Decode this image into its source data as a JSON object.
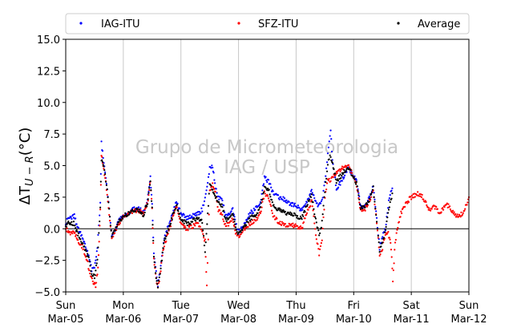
{
  "chart_data": {
    "type": "scatter",
    "ylabel": "ΔT_U−R (°C)",
    "ylabel_main": "ΔT",
    "ylabel_sub": "U − R",
    "ylabel_unit": "(°C)",
    "xlabel": "",
    "ylim": [
      -5,
      15
    ],
    "y_ticks": [
      "−5.0",
      "−2.5",
      "0.0",
      "2.5",
      "5.0",
      "7.5",
      "10.0",
      "12.5",
      "15.0"
    ],
    "x_ticks": [
      {
        "day": "Sun",
        "date": "Mar-05"
      },
      {
        "day": "Mon",
        "date": "Mar-06"
      },
      {
        "day": "Tue",
        "date": "Mar-07"
      },
      {
        "day": "Wed",
        "date": "Mar-08"
      },
      {
        "day": "Thu",
        "date": "Mar-09"
      },
      {
        "day": "Fri",
        "date": "Mar-10"
      },
      {
        "day": "Sat",
        "date": "Mar-11"
      },
      {
        "day": "Sun",
        "date": "Mar-12"
      }
    ],
    "xlim_days": [
      0,
      7
    ],
    "grid": "vertical-only",
    "zero_line": true,
    "legend_placement": "top",
    "watermark": [
      "Grupo de Micrometeorologia",
      "IAG / USP"
    ],
    "series": [
      {
        "name": "IAG-ITU",
        "color": "#0000ff",
        "points": [
          [
            0,
            0.5
          ],
          [
            0.08,
            0.9
          ],
          [
            0.15,
            1.0
          ],
          [
            0.2,
            0.2
          ],
          [
            0.3,
            -0.8
          ],
          [
            0.4,
            -2.2
          ],
          [
            0.45,
            -3.2
          ],
          [
            0.5,
            -3.0
          ],
          [
            0.55,
            -1.5
          ],
          [
            0.6,
            2.0
          ],
          [
            0.62,
            6.8
          ],
          [
            0.66,
            5.2
          ],
          [
            0.72,
            3.2
          ],
          [
            0.8,
            -0.5
          ],
          [
            0.85,
            -0.2
          ],
          [
            0.9,
            0.5
          ],
          [
            1.0,
            1.0
          ],
          [
            1.1,
            1.3
          ],
          [
            1.2,
            1.6
          ],
          [
            1.3,
            1.5
          ],
          [
            1.35,
            1.2
          ],
          [
            1.42,
            2.2
          ],
          [
            1.47,
            4.0
          ],
          [
            1.5,
            1.8
          ],
          [
            1.53,
            -2.0
          ],
          [
            1.57,
            -3.5
          ],
          [
            1.6,
            -4.5
          ],
          [
            1.65,
            -3.0
          ],
          [
            1.7,
            -1.0
          ],
          [
            1.8,
            0.5
          ],
          [
            1.87,
            1.5
          ],
          [
            1.92,
            2.1
          ],
          [
            2.0,
            1.2
          ],
          [
            2.1,
            0.8
          ],
          [
            2.2,
            1.0
          ],
          [
            2.3,
            1.2
          ],
          [
            2.37,
            1.5
          ],
          [
            2.42,
            2.4
          ],
          [
            2.5,
            4.8
          ],
          [
            2.55,
            5.0
          ],
          [
            2.6,
            3.2
          ],
          [
            2.65,
            2.5
          ],
          [
            2.72,
            2.2
          ],
          [
            2.78,
            1.0
          ],
          [
            2.85,
            1.3
          ],
          [
            2.9,
            1.5
          ],
          [
            2.95,
            0.5
          ],
          [
            3.0,
            -0.3
          ],
          [
            3.1,
            0.3
          ],
          [
            3.2,
            1.2
          ],
          [
            3.3,
            1.6
          ],
          [
            3.38,
            2.0
          ],
          [
            3.45,
            4.0
          ],
          [
            3.52,
            3.8
          ],
          [
            3.6,
            2.8
          ],
          [
            3.7,
            2.5
          ],
          [
            3.8,
            2.3
          ],
          [
            3.9,
            2.0
          ],
          [
            4.0,
            1.8
          ],
          [
            4.1,
            1.5
          ],
          [
            4.2,
            2.3
          ],
          [
            4.27,
            3.1
          ],
          [
            4.33,
            2.2
          ],
          [
            4.4,
            1.8
          ],
          [
            4.45,
            2.3
          ],
          [
            4.5,
            3.6
          ],
          [
            4.55,
            6.0
          ],
          [
            4.6,
            7.8
          ],
          [
            4.63,
            5.5
          ],
          [
            4.7,
            3.2
          ],
          [
            4.8,
            3.8
          ],
          [
            4.9,
            4.8
          ],
          [
            4.95,
            4.5
          ],
          [
            5.05,
            3.8
          ],
          [
            5.12,
            1.7
          ],
          [
            5.2,
            1.8
          ],
          [
            5.28,
            2.5
          ],
          [
            5.34,
            3.4
          ],
          [
            5.4,
            0.8
          ],
          [
            5.45,
            -1.5
          ],
          [
            5.5,
            -0.5
          ],
          [
            5.55,
            0.0
          ],
          [
            5.62,
            2.5
          ],
          [
            5.67,
            3.2
          ]
        ]
      },
      {
        "name": "SFZ-ITU",
        "color": "#ff0000",
        "points": [
          [
            0,
            0.0
          ],
          [
            0.08,
            -0.3
          ],
          [
            0.15,
            -0.2
          ],
          [
            0.2,
            -0.8
          ],
          [
            0.3,
            -1.5
          ],
          [
            0.37,
            -2.5
          ],
          [
            0.42,
            -3.5
          ],
          [
            0.47,
            -4.2
          ],
          [
            0.52,
            -4.5
          ],
          [
            0.56,
            -3.2
          ],
          [
            0.6,
            1.5
          ],
          [
            0.62,
            5.8
          ],
          [
            0.66,
            4.8
          ],
          [
            0.72,
            2.8
          ],
          [
            0.8,
            -0.8
          ],
          [
            0.85,
            -0.3
          ],
          [
            0.9,
            0.3
          ],
          [
            1.0,
            0.9
          ],
          [
            1.1,
            1.2
          ],
          [
            1.2,
            1.4
          ],
          [
            1.3,
            1.4
          ],
          [
            1.35,
            1.1
          ],
          [
            1.42,
            2.0
          ],
          [
            1.47,
            3.8
          ],
          [
            1.5,
            1.5
          ],
          [
            1.53,
            -2.5
          ],
          [
            1.57,
            -4.0
          ],
          [
            1.6,
            -4.8
          ],
          [
            1.65,
            -3.2
          ],
          [
            1.7,
            -1.5
          ],
          [
            1.8,
            0.0
          ],
          [
            1.87,
            1.0
          ],
          [
            1.92,
            1.8
          ],
          [
            2.0,
            0.3
          ],
          [
            2.1,
            0.0
          ],
          [
            2.2,
            0.2
          ],
          [
            2.3,
            0.4
          ],
          [
            2.37,
            -0.3
          ],
          [
            2.42,
            -1.0
          ],
          [
            2.45,
            -4.5
          ],
          [
            2.5,
            3.0
          ],
          [
            2.55,
            3.5
          ],
          [
            2.6,
            2.8
          ],
          [
            2.65,
            1.5
          ],
          [
            2.72,
            1.0
          ],
          [
            2.78,
            0.2
          ],
          [
            2.85,
            0.5
          ],
          [
            2.9,
            0.8
          ],
          [
            2.95,
            -0.3
          ],
          [
            3.0,
            -0.6
          ],
          [
            3.1,
            0.0
          ],
          [
            3.2,
            0.4
          ],
          [
            3.3,
            0.7
          ],
          [
            3.38,
            1.2
          ],
          [
            3.45,
            2.8
          ],
          [
            3.52,
            2.5
          ],
          [
            3.6,
            1.0
          ],
          [
            3.7,
            0.5
          ],
          [
            3.8,
            0.3
          ],
          [
            3.9,
            0.3
          ],
          [
            4.0,
            0.2
          ],
          [
            4.1,
            0.0
          ],
          [
            4.2,
            1.5
          ],
          [
            4.27,
            2.2
          ],
          [
            4.33,
            0.0
          ],
          [
            4.4,
            -2.0
          ],
          [
            4.45,
            -1.0
          ],
          [
            4.5,
            2.5
          ],
          [
            4.55,
            4.0
          ],
          [
            4.6,
            3.8
          ],
          [
            4.7,
            4.5
          ],
          [
            4.8,
            4.8
          ],
          [
            4.9,
            5.0
          ],
          [
            4.95,
            4.6
          ],
          [
            5.05,
            3.5
          ],
          [
            5.12,
            1.5
          ],
          [
            5.2,
            1.6
          ],
          [
            5.28,
            2.3
          ],
          [
            5.34,
            3.0
          ],
          [
            5.4,
            0.5
          ],
          [
            5.45,
            -2.0
          ],
          [
            5.5,
            -1.5
          ],
          [
            5.55,
            -0.5
          ],
          [
            5.6,
            -0.3
          ],
          [
            5.65,
            -1.5
          ],
          [
            5.68,
            -4.2
          ],
          [
            5.72,
            -1.0
          ],
          [
            5.8,
            1.0
          ],
          [
            5.9,
            2.0
          ],
          [
            6.0,
            2.5
          ],
          [
            6.1,
            2.8
          ],
          [
            6.2,
            2.5
          ],
          [
            6.3,
            1.5
          ],
          [
            6.4,
            1.8
          ],
          [
            6.5,
            1.2
          ],
          [
            6.6,
            2.0
          ],
          [
            6.7,
            1.5
          ],
          [
            6.8,
            1.0
          ],
          [
            6.9,
            1.2
          ],
          [
            7.0,
            2.5
          ]
        ]
      },
      {
        "name": "Average",
        "color": "#000000",
        "points": [
          [
            0,
            0.3
          ],
          [
            0.08,
            0.5
          ],
          [
            0.15,
            0.4
          ],
          [
            0.2,
            -0.3
          ],
          [
            0.3,
            -1.2
          ],
          [
            0.4,
            -2.4
          ],
          [
            0.45,
            -3.5
          ],
          [
            0.5,
            -3.8
          ],
          [
            0.55,
            -2.4
          ],
          [
            0.6,
            1.8
          ],
          [
            0.62,
            5.5
          ],
          [
            0.66,
            5.0
          ],
          [
            0.72,
            3.0
          ],
          [
            0.8,
            -0.6
          ],
          [
            0.85,
            -0.2
          ],
          [
            0.9,
            0.4
          ],
          [
            1.0,
            1.0
          ],
          [
            1.1,
            1.2
          ],
          [
            1.2,
            1.5
          ],
          [
            1.3,
            1.4
          ],
          [
            1.35,
            1.1
          ],
          [
            1.42,
            2.1
          ],
          [
            1.47,
            3.9
          ],
          [
            1.5,
            1.6
          ],
          [
            1.53,
            -2.2
          ],
          [
            1.57,
            -3.8
          ],
          [
            1.6,
            -4.6
          ],
          [
            1.65,
            -3.1
          ],
          [
            1.7,
            -1.2
          ],
          [
            1.8,
            0.2
          ],
          [
            1.87,
            1.2
          ],
          [
            1.92,
            1.9
          ],
          [
            2.0,
            0.8
          ],
          [
            2.1,
            0.4
          ],
          [
            2.2,
            0.6
          ],
          [
            2.3,
            0.8
          ],
          [
            2.37,
            0.6
          ],
          [
            2.42,
            -2.0
          ],
          [
            2.5,
            3.5
          ],
          [
            2.55,
            3.0
          ],
          [
            2.6,
            2.6
          ],
          [
            2.65,
            2.0
          ],
          [
            2.72,
            1.8
          ],
          [
            2.78,
            0.6
          ],
          [
            2.85,
            0.9
          ],
          [
            2.9,
            1.1
          ],
          [
            2.95,
            0.1
          ],
          [
            3.0,
            -0.4
          ],
          [
            3.1,
            0.2
          ],
          [
            3.2,
            0.8
          ],
          [
            3.3,
            1.1
          ],
          [
            3.38,
            1.6
          ],
          [
            3.45,
            3.2
          ],
          [
            3.52,
            3.2
          ],
          [
            3.6,
            1.8
          ],
          [
            3.7,
            1.5
          ],
          [
            3.8,
            1.3
          ],
          [
            3.9,
            1.2
          ],
          [
            4.0,
            1.0
          ],
          [
            4.1,
            0.8
          ],
          [
            4.2,
            2.0
          ],
          [
            4.27,
            2.6
          ],
          [
            4.33,
            1.0
          ],
          [
            4.4,
            -0.5
          ],
          [
            4.45,
            0.5
          ],
          [
            4.5,
            3.0
          ],
          [
            4.55,
            5.2
          ],
          [
            4.6,
            5.8
          ],
          [
            4.7,
            3.8
          ],
          [
            4.8,
            4.3
          ],
          [
            4.9,
            4.9
          ],
          [
            4.95,
            4.5
          ],
          [
            5.05,
            3.6
          ],
          [
            5.12,
            1.6
          ],
          [
            5.2,
            1.7
          ],
          [
            5.28,
            2.4
          ],
          [
            5.34,
            3.2
          ],
          [
            5.4,
            0.6
          ],
          [
            5.45,
            -1.8
          ],
          [
            5.5,
            -1.0
          ],
          [
            5.55,
            -0.2
          ],
          [
            5.62,
            1.8
          ],
          [
            5.67,
            2.8
          ]
        ]
      }
    ]
  }
}
